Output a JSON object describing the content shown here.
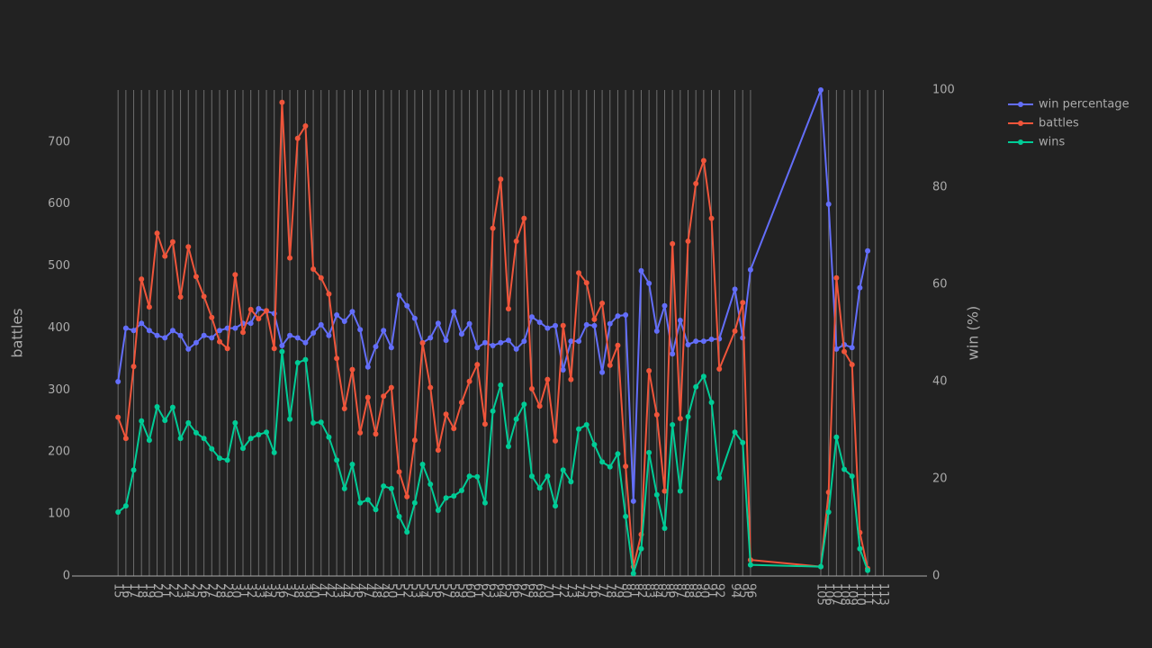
{
  "chart_data": {
    "type": "line",
    "x": [
      15,
      16,
      17,
      18,
      19,
      20,
      21,
      22,
      23,
      24,
      25,
      26,
      27,
      28,
      29,
      30,
      31,
      32,
      33,
      34,
      35,
      36,
      37,
      38,
      39,
      40,
      41,
      42,
      43,
      44,
      45,
      46,
      47,
      48,
      49,
      50,
      51,
      52,
      53,
      54,
      55,
      56,
      57,
      58,
      59,
      60,
      61,
      62,
      63,
      64,
      65,
      66,
      67,
      68,
      69,
      70,
      71,
      72,
      73,
      74,
      75,
      76,
      77,
      78,
      79,
      80,
      81,
      82,
      83,
      84,
      85,
      86,
      87,
      88,
      89,
      90,
      91,
      92,
      94,
      95,
      96,
      105,
      106,
      107,
      108,
      109,
      110,
      111
    ],
    "xticks": [
      15,
      16,
      17,
      18,
      19,
      20,
      21,
      22,
      23,
      24,
      25,
      26,
      27,
      28,
      29,
      30,
      31,
      32,
      33,
      34,
      35,
      36,
      37,
      38,
      39,
      40,
      41,
      42,
      43,
      44,
      45,
      46,
      47,
      48,
      49,
      50,
      51,
      52,
      53,
      54,
      55,
      56,
      57,
      58,
      59,
      60,
      61,
      62,
      63,
      64,
      65,
      66,
      67,
      68,
      69,
      70,
      71,
      72,
      73,
      74,
      75,
      76,
      77,
      78,
      79,
      80,
      81,
      82,
      83,
      84,
      85,
      86,
      87,
      88,
      89,
      90,
      91,
      92,
      94,
      95,
      96,
      105,
      106,
      107,
      108,
      109,
      110,
      111,
      112,
      113
    ],
    "xlim": [
      9.1,
      118.6
    ],
    "ylabel": "battles",
    "ylim": [
      0,
      784
    ],
    "yticks": [
      0,
      100,
      200,
      300,
      400,
      500,
      600,
      700
    ],
    "y2label": "win (%)",
    "y2lim": [
      0,
      100
    ],
    "y2ticks": [
      0,
      20,
      40,
      60,
      80,
      100
    ],
    "grid": true,
    "series": [
      {
        "name": "win percentage",
        "color": "#636efa",
        "axis": "y2",
        "values": [
          40,
          51,
          50.5,
          52,
          50.5,
          49.5,
          49,
          50.5,
          49.5,
          46.7,
          48,
          49.5,
          49,
          50.5,
          51,
          51,
          52,
          52,
          55,
          54.5,
          54,
          47.4,
          49.5,
          49,
          48,
          50,
          51.7,
          49.5,
          53.7,
          52.4,
          54.4,
          50.7,
          43,
          47.2,
          50.5,
          47,
          57.8,
          55.6,
          53,
          48,
          49,
          52,
          48.5,
          54.4,
          49.8,
          51.9,
          47,
          48,
          47.4,
          48,
          48.5,
          46.7,
          48.3,
          53.3,
          52.2,
          51,
          51.5,
          42.4,
          48.3,
          48.3,
          51.7,
          51.5,
          41.9,
          51.9,
          53.5,
          53.7,
          15.4,
          62.8,
          60.2,
          50.4,
          55.6,
          45.7,
          52.6,
          47.6,
          48.3,
          48.3,
          48.7,
          48.8,
          59,
          49,
          63,
          100,
          76.5,
          46.7,
          47.6,
          47,
          59.3,
          66.9
        ]
      },
      {
        "name": "battles",
        "color": "#ef553b",
        "values": [
          256,
          222,
          338,
          479,
          434,
          553,
          516,
          539,
          450,
          531,
          483,
          451,
          417,
          378,
          367,
          486,
          393,
          430,
          415,
          428,
          367,
          764,
          513,
          706,
          726,
          495,
          481,
          455,
          351,
          270,
          333,
          231,
          288,
          229,
          290,
          304,
          168,
          128,
          219,
          376,
          304,
          203,
          261,
          238,
          280,
          314,
          341,
          245,
          561,
          640,
          431,
          540,
          577,
          302,
          274,
          317,
          218,
          404,
          317,
          489,
          473,
          414,
          440,
          340,
          372,
          177,
          15,
          67,
          331,
          260,
          137,
          536,
          254,
          540,
          633,
          670,
          577,
          334,
          395,
          441,
          26,
          15,
          135,
          481,
          362,
          341,
          70,
          12
        ]
      },
      {
        "name": "wins",
        "color": "#00cc96",
        "values": [
          103,
          113,
          171,
          250,
          219,
          273,
          251,
          272,
          222,
          247,
          231,
          222,
          205,
          190,
          187,
          247,
          206,
          222,
          228,
          232,
          199,
          362,
          253,
          344,
          349,
          247,
          248,
          224,
          187,
          141,
          180,
          118,
          123,
          107,
          145,
          141,
          96,
          71,
          118,
          180,
          148,
          106,
          126,
          129,
          138,
          161,
          160,
          118,
          266,
          308,
          209,
          253,
          277,
          161,
          142,
          161,
          113,
          171,
          152,
          237,
          244,
          212,
          184,
          176,
          197,
          96,
          4,
          44,
          199,
          131,
          77,
          244,
          137,
          257,
          305,
          322,
          280,
          158,
          232,
          215,
          18,
          15,
          103,
          224,
          172,
          161,
          44,
          9
        ]
      }
    ]
  }
}
